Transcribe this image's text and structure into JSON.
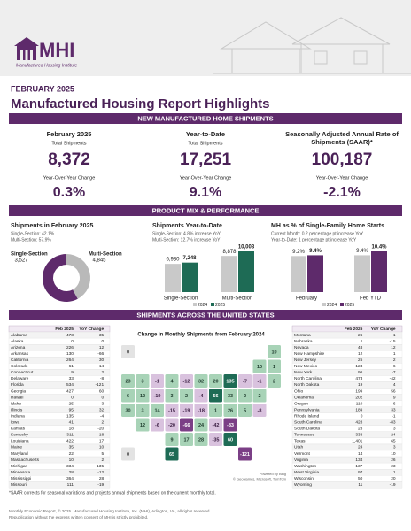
{
  "header": {
    "logo_text": "MHI",
    "logo_subtitle": "Manufactured Housing Institute",
    "date": "FEBRUARY 2025",
    "title": "Manufactured Housing Report Highlights"
  },
  "shipments": {
    "heading": "NEW MANUFACTURED HOME SHIPMENTS",
    "cards": [
      {
        "title": [
          "February 2025"
        ],
        "label": "Total Shipments",
        "value": "8,372",
        "change_label": "Year-Over-Year Change",
        "change": "0.3%"
      },
      {
        "title": [
          "Year-to-Date"
        ],
        "label": "Total Shipments",
        "value": "17,251",
        "change_label": "Year-Over-Year Change",
        "change": "9.1%"
      },
      {
        "title": [
          "Seasonally Adjusted Annual Rate of",
          "Shipments (SAAR)*"
        ],
        "value": "100,187",
        "change_label": "Year-Over-Year Change",
        "change": "-2.1%"
      }
    ]
  },
  "product": {
    "heading": "PRODUCT MIX & PERFORMANCE",
    "donut": {
      "type": "pie",
      "title": "Shipments in February 2025",
      "notes": [
        "Single-Section: 42.1%",
        "Multi-Section: 57.9%"
      ],
      "categories": [
        "Single-Section",
        "Multi-Section"
      ],
      "values": [
        3527,
        4845
      ],
      "value_labels": [
        "3,527",
        "4,845"
      ],
      "colors": [
        "#b9b9b9",
        "#5e2a6b"
      ]
    },
    "ytd": {
      "type": "bar",
      "title": "Shipments Year-to-Date",
      "notes": [
        "Single-Section: 4.8% increase YoY",
        "Multi-Section: 12.7% increase YoY"
      ],
      "categories": [
        "Single-Section",
        "Multi-Section"
      ],
      "series": [
        {
          "name": "2024",
          "color": "#c9c9c9",
          "values": [
            6930,
            8878
          ],
          "value_labels": [
            "6,930",
            "8,878"
          ]
        },
        {
          "name": "2025",
          "color": "#1e6b55",
          "values": [
            7248,
            10003
          ],
          "value_labels": [
            "7,248",
            "10,003"
          ]
        }
      ]
    },
    "share": {
      "type": "bar",
      "title": "MH as % of Single-Family Home Starts",
      "notes": [
        "Current Month: 0.2 percentage pt increase YoY",
        "Year-to-Date: 1 percentage pt increase YoY"
      ],
      "categories": [
        "February",
        "Feb YTD"
      ],
      "series": [
        {
          "name": "2024",
          "color": "#c9c9c9",
          "values": [
            9.2,
            9.4
          ],
          "value_labels": [
            "9.2%",
            "9.4%"
          ]
        },
        {
          "name": "2025",
          "color": "#5e2a6b",
          "values": [
            9.4,
            10.4
          ],
          "value_labels": [
            "9.4%",
            "10.4%"
          ]
        }
      ]
    }
  },
  "states": {
    "heading": "SHIPMENTS ACROSS THE UNITED STATES",
    "map_title": "Change in Monthly Shipments from February 2024",
    "map_credits": [
      "Powered by Bing",
      "© GeoNames, Microsoft, TomTom"
    ],
    "columns": [
      "Feb 2025",
      "YoY Change"
    ],
    "left_rows": [
      [
        "Alabama",
        473,
        -35
      ],
      [
        "Alaska",
        0,
        0
      ],
      [
        "Arizona",
        226,
        12
      ],
      [
        "Arkansas",
        130,
        -66
      ],
      [
        "California",
        264,
        30
      ],
      [
        "Colorado",
        61,
        14
      ],
      [
        "Connecticut",
        9,
        2
      ],
      [
        "Delaware",
        33,
        -8
      ],
      [
        "Florida",
        534,
        -121
      ],
      [
        "Georgia",
        427,
        60
      ],
      [
        "Hawaii",
        0,
        0
      ],
      [
        "Idaho",
        25,
        3
      ],
      [
        "Illinois",
        95,
        32
      ],
      [
        "Indiana",
        135,
        -4
      ],
      [
        "Iowa",
        41,
        2
      ],
      [
        "Kansas",
        18,
        -20
      ],
      [
        "Kentucky",
        311,
        -18
      ],
      [
        "Louisiana",
        422,
        17
      ],
      [
        "Maine",
        35,
        10
      ],
      [
        "Maryland",
        22,
        5
      ],
      [
        "Massachusetts",
        10,
        2
      ],
      [
        "Michigan",
        334,
        135
      ],
      [
        "Minnesota",
        28,
        -12
      ],
      [
        "Mississippi",
        364,
        28
      ],
      [
        "Missouri",
        111,
        -19
      ]
    ],
    "right_rows": [
      [
        "Montana",
        26,
        -1
      ],
      [
        "Nebraska",
        1,
        -15
      ],
      [
        "Nevada",
        48,
        12
      ],
      [
        "New Hampshire",
        12,
        1
      ],
      [
        "New Jersey",
        25,
        2
      ],
      [
        "New Mexico",
        124,
        -6
      ],
      [
        "New York",
        96,
        -7
      ],
      [
        "North Carolina",
        473,
        -42
      ],
      [
        "North Dakota",
        19,
        4
      ],
      [
        "Ohio",
        199,
        56
      ],
      [
        "Oklahoma",
        202,
        9
      ],
      [
        "Oregon",
        110,
        6
      ],
      [
        "Pennsylvania",
        189,
        33
      ],
      [
        "Rhode Island",
        0,
        -1
      ],
      [
        "South Carolina",
        428,
        -83
      ],
      [
        "South Dakota",
        23,
        3
      ],
      [
        "Tennessee",
        338,
        24
      ],
      [
        "Texas",
        "1,401",
        65
      ],
      [
        "Utah",
        24,
        3
      ],
      [
        "Vermont",
        14,
        10
      ],
      [
        "Virginia",
        134,
        26
      ],
      [
        "Washington",
        137,
        23
      ],
      [
        "West Virginia",
        97,
        1
      ],
      [
        "Wisconsin",
        50,
        20
      ],
      [
        "Wyoming",
        11,
        -19
      ]
    ]
  },
  "footnote": "*SAAR corrects for seasonal variations and projects annual shipments based on the current monthly total.",
  "footer": [
    "Monthly Economic Report, © 2025. Manufactured Housing Institute, Inc. (MHI), Arlington, VA, all rights reserved.",
    "Republication without the express written consent of MHI is strictly prohibited."
  ]
}
